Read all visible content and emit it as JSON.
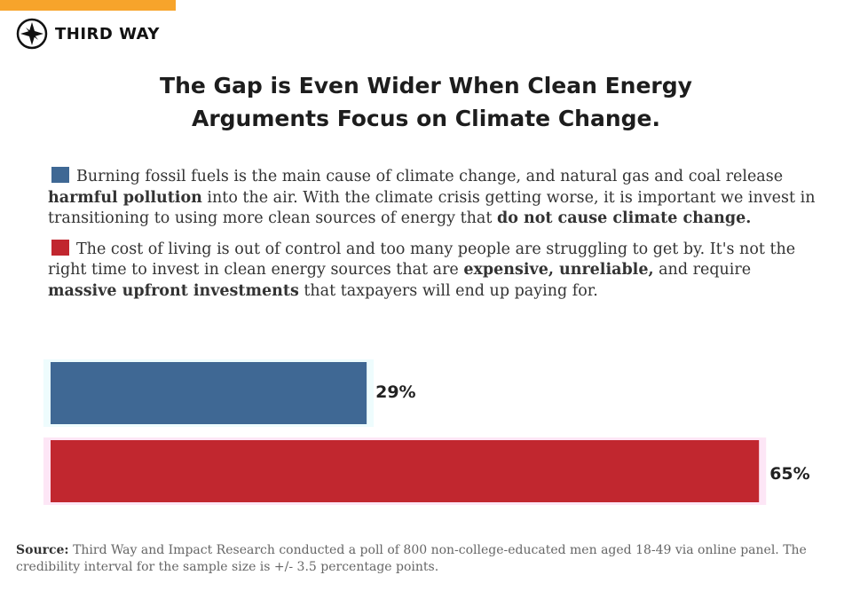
{
  "logo": "THIRD WAY",
  "chart_data": {
    "type": "bar",
    "orientation": "horizontal",
    "title": "The Gap is Even Wider When Clean Energy Arguments Focus on Climate Change.",
    "xlim": [
      0,
      100
    ],
    "series": [
      {
        "name": [
          {
            "text": "Burning fossil fuels is the main cause of climate change, and natural gas and coal release ",
            "bold": false
          },
          {
            "text": "harmful pollution",
            "bold": true
          },
          {
            "text": " into the air. With the climate crisis getting worse, it is important we invest in transitioning to using more clean sources of energy that ",
            "bold": false
          },
          {
            "text": "do not cause climate change.",
            "bold": true
          }
        ],
        "color": "#3f6894",
        "values": [
          29
        ],
        "value_labels": [
          "29%"
        ]
      },
      {
        "name": [
          {
            "text": "The cost of living is out of control and too many people are struggling to get by. It's not the right time to invest in clean energy sources that are ",
            "bold": false
          },
          {
            "text": "expensive, unreliable,",
            "bold": true
          },
          {
            "text": " and require ",
            "bold": false
          },
          {
            "text": "massive upfront investments",
            "bold": true
          },
          {
            "text": " that taxpayers will end up paying for.",
            "bold": false
          }
        ],
        "color": "#c1272f",
        "values": [
          65
        ],
        "value_labels": [
          "65%"
        ]
      }
    ]
  },
  "source": {
    "label": "Source:",
    "text": "Third Way and Impact Research conducted a poll of 800 non-college-educated men aged 18-49 via online panel. The credibility interval for the sample size is +/- 3.5 percentage points."
  }
}
